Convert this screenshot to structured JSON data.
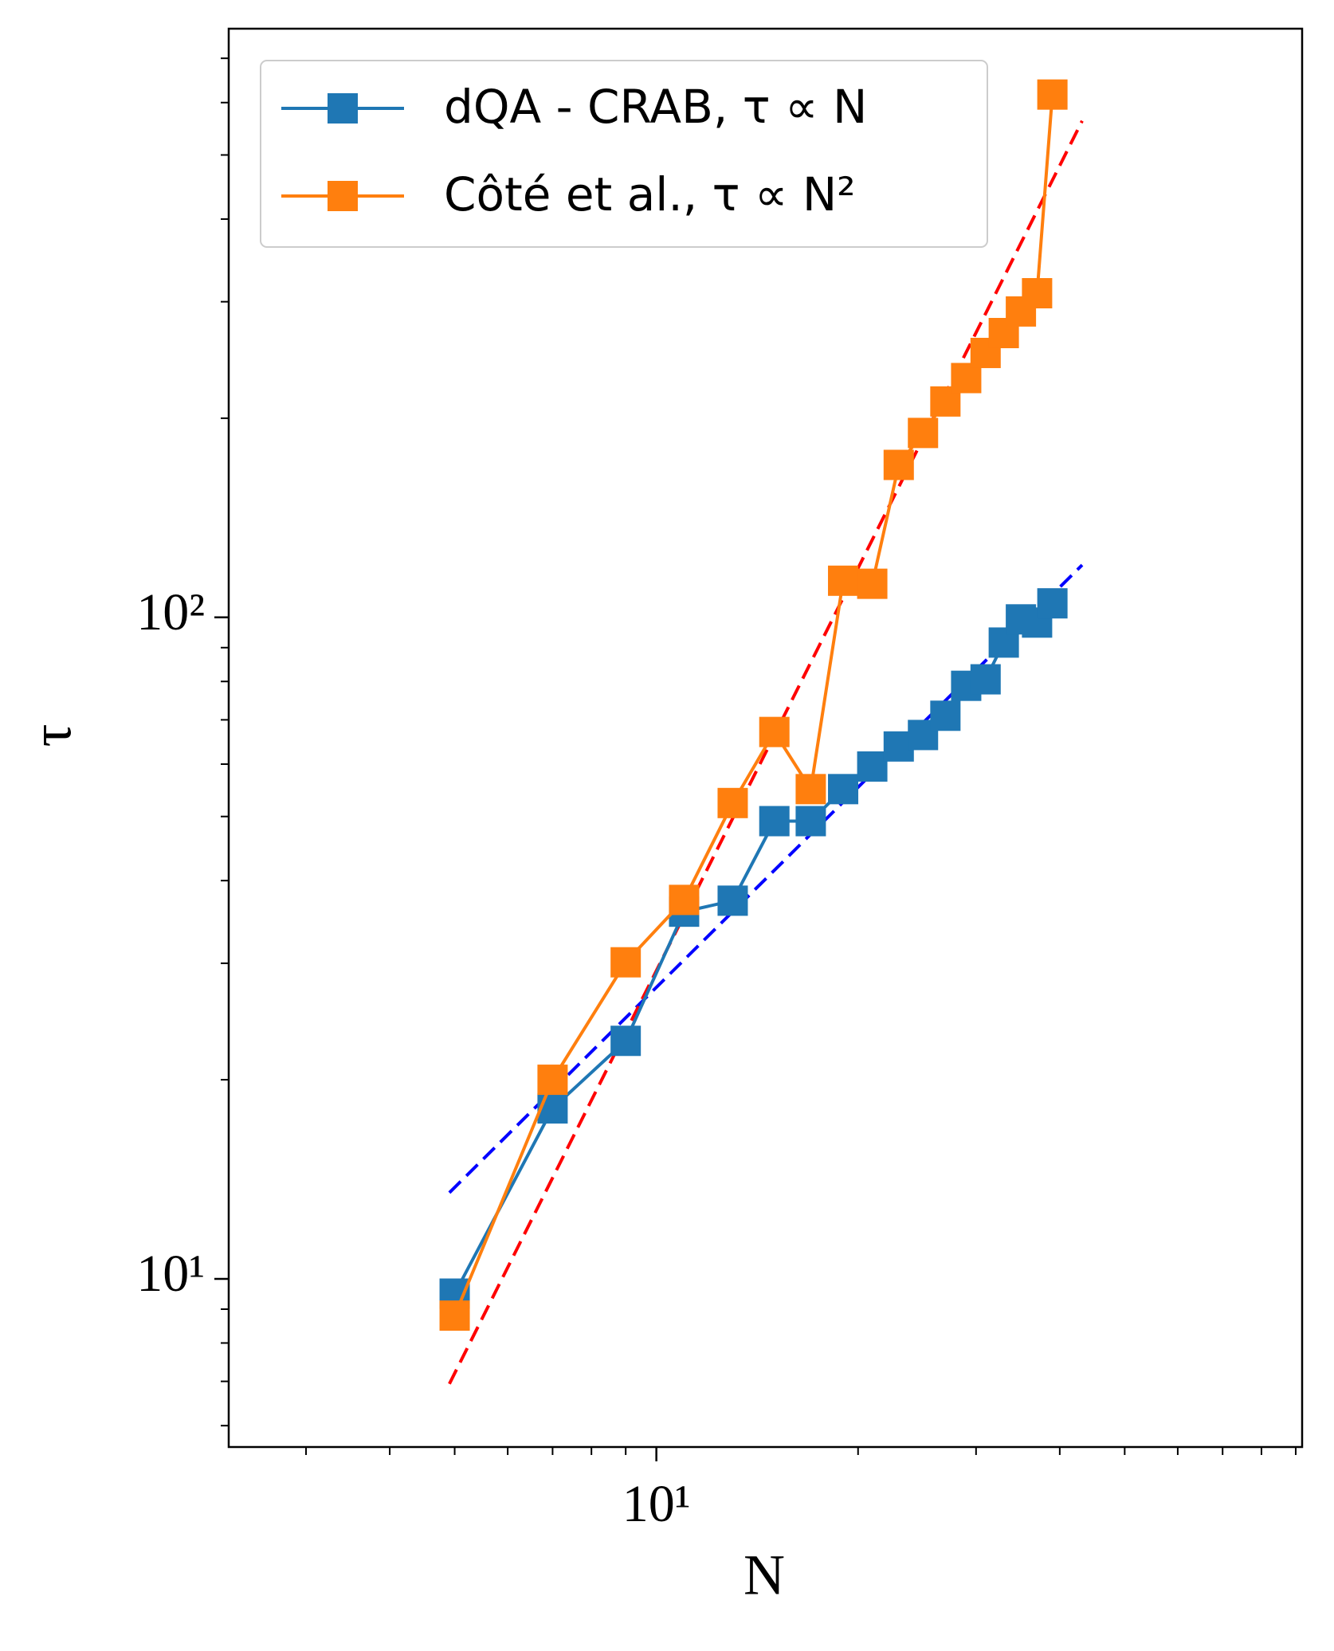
{
  "chart_data": {
    "type": "line",
    "xlabel": "N",
    "ylabel": "τ",
    "xscale": "log",
    "yscale": "log",
    "xlim": [
      2.3,
      92
    ],
    "ylim": [
      5.57,
      776
    ],
    "xticks": [
      {
        "value": 10,
        "label": "10¹"
      }
    ],
    "yticks": [
      {
        "value": 10,
        "label": "10¹"
      },
      {
        "value": 100,
        "label": "10²"
      }
    ],
    "xminorticks": [
      3,
      4,
      5,
      6,
      7,
      8,
      9,
      20,
      30,
      40,
      50,
      60,
      70,
      80,
      90
    ],
    "yminorticks": [
      6,
      7,
      8,
      9,
      20,
      30,
      40,
      50,
      60,
      70,
      80,
      90,
      200,
      300,
      400,
      500,
      600,
      700
    ],
    "legend": "upper left",
    "series": [
      {
        "name": "dQA - CRAB, τ ∝ N",
        "color": "#1f77b4",
        "x": [
          5,
          7,
          9,
          11,
          13,
          15,
          17,
          19,
          21,
          23,
          25,
          27,
          29,
          31,
          33,
          35,
          37,
          39
        ],
        "values": [
          9.5,
          18.1,
          22.9,
          35.9,
          37.3,
          49.2,
          49.2,
          55.0,
          59.5,
          63.8,
          66.4,
          71.0,
          78.8,
          80.6,
          91.6,
          99.3,
          98.2,
          105
        ]
      },
      {
        "name": "Côté et al., τ ∝ N²",
        "color": "#ff7f0e",
        "x": [
          5,
          7,
          9,
          11,
          13,
          15,
          17,
          19,
          21,
          23,
          25,
          27,
          29,
          31,
          33,
          35,
          37,
          39
        ],
        "values": [
          8.8,
          20.0,
          30.1,
          37.4,
          52.4,
          67.1,
          55.0,
          113.6,
          112.4,
          170,
          190,
          212,
          230,
          251,
          269,
          290,
          309,
          617
        ]
      }
    ],
    "fit_lines": [
      {
        "color": "#0000ff",
        "x": [
          4.91,
          43.2
        ],
        "values": [
          13.5,
          120
        ]
      },
      {
        "color": "#ff0000",
        "x": [
          4.91,
          43.2
        ],
        "values": [
          6.94,
          563
        ]
      }
    ]
  }
}
